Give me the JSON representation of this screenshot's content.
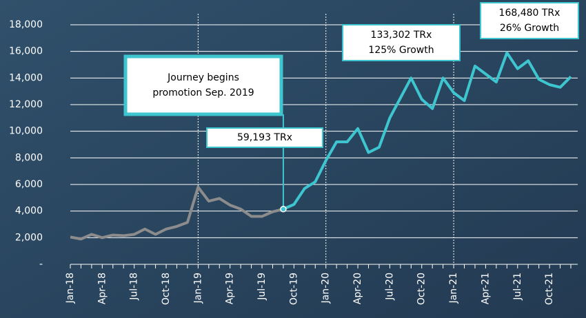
{
  "chart_data": {
    "type": "line",
    "categories": [
      "Jan-18",
      null,
      null,
      "Apr-18",
      null,
      null,
      "Jul-18",
      null,
      null,
      "Oct-18",
      null,
      null,
      "Jan-19",
      null,
      null,
      "Apr-19",
      null,
      null,
      "Jul-19",
      null,
      null,
      "Oct-19",
      null,
      null,
      "Jan-20",
      null,
      null,
      "Apr-20",
      null,
      null,
      "Jul-20",
      null,
      null,
      "Oct-20",
      null,
      null,
      "Jan-21",
      null,
      null,
      "Apr-21",
      null,
      null,
      "Jul-21",
      null,
      null,
      "Oct-21",
      null,
      null
    ],
    "series": [
      {
        "color": "#8c8c8c",
        "values": [
          2050,
          1900,
          2250,
          2000,
          2200,
          2150,
          2250,
          2650,
          2250,
          2650,
          2850,
          3150,
          5800,
          4750,
          4950,
          4450,
          4150,
          3600,
          3600,
          3950,
          4150,
          null,
          null,
          null,
          null,
          null,
          null,
          null,
          null,
          null,
          null,
          null,
          null,
          null,
          null,
          null,
          null,
          null,
          null,
          null,
          null,
          null,
          null,
          null,
          null,
          null,
          null,
          null
        ]
      },
      {
        "color": "#3ec6d0",
        "values": [
          null,
          null,
          null,
          null,
          null,
          null,
          null,
          null,
          null,
          null,
          null,
          null,
          null,
          null,
          null,
          null,
          null,
          null,
          null,
          null,
          4150,
          4500,
          5700,
          6200,
          7800,
          9200,
          9200,
          10200,
          8400,
          8800,
          11000,
          12500,
          14000,
          12400,
          11700,
          14000,
          12900,
          12300,
          14900,
          14300,
          13700,
          15900,
          14700,
          15300,
          13900,
          13500,
          13300,
          14100
        ]
      }
    ],
    "ylim": [
      0,
      18000
    ],
    "yticks": [
      {
        "value": 0,
        "label": "-"
      },
      {
        "value": 2000,
        "label": "2,000"
      },
      {
        "value": 4000,
        "label": "4,000"
      },
      {
        "value": 6000,
        "label": "6,000"
      },
      {
        "value": 8000,
        "label": "8,000"
      },
      {
        "value": 10000,
        "label": "10,000"
      },
      {
        "value": 12000,
        "label": "12,000"
      },
      {
        "value": 14000,
        "label": "14,000"
      },
      {
        "value": 16000,
        "label": "16,000"
      },
      {
        "value": 18000,
        "label": "18,000"
      }
    ],
    "grid": true,
    "annotations": [
      {
        "lines": [
          "Journey begins",
          "promotion Sep. 2019"
        ]
      },
      {
        "lines": [
          "59,193 TRx"
        ]
      },
      {
        "lines": [
          "133,302 TRx",
          "125% Growth"
        ]
      },
      {
        "lines": [
          "168,480 TRx",
          "26% Growth"
        ]
      }
    ]
  }
}
